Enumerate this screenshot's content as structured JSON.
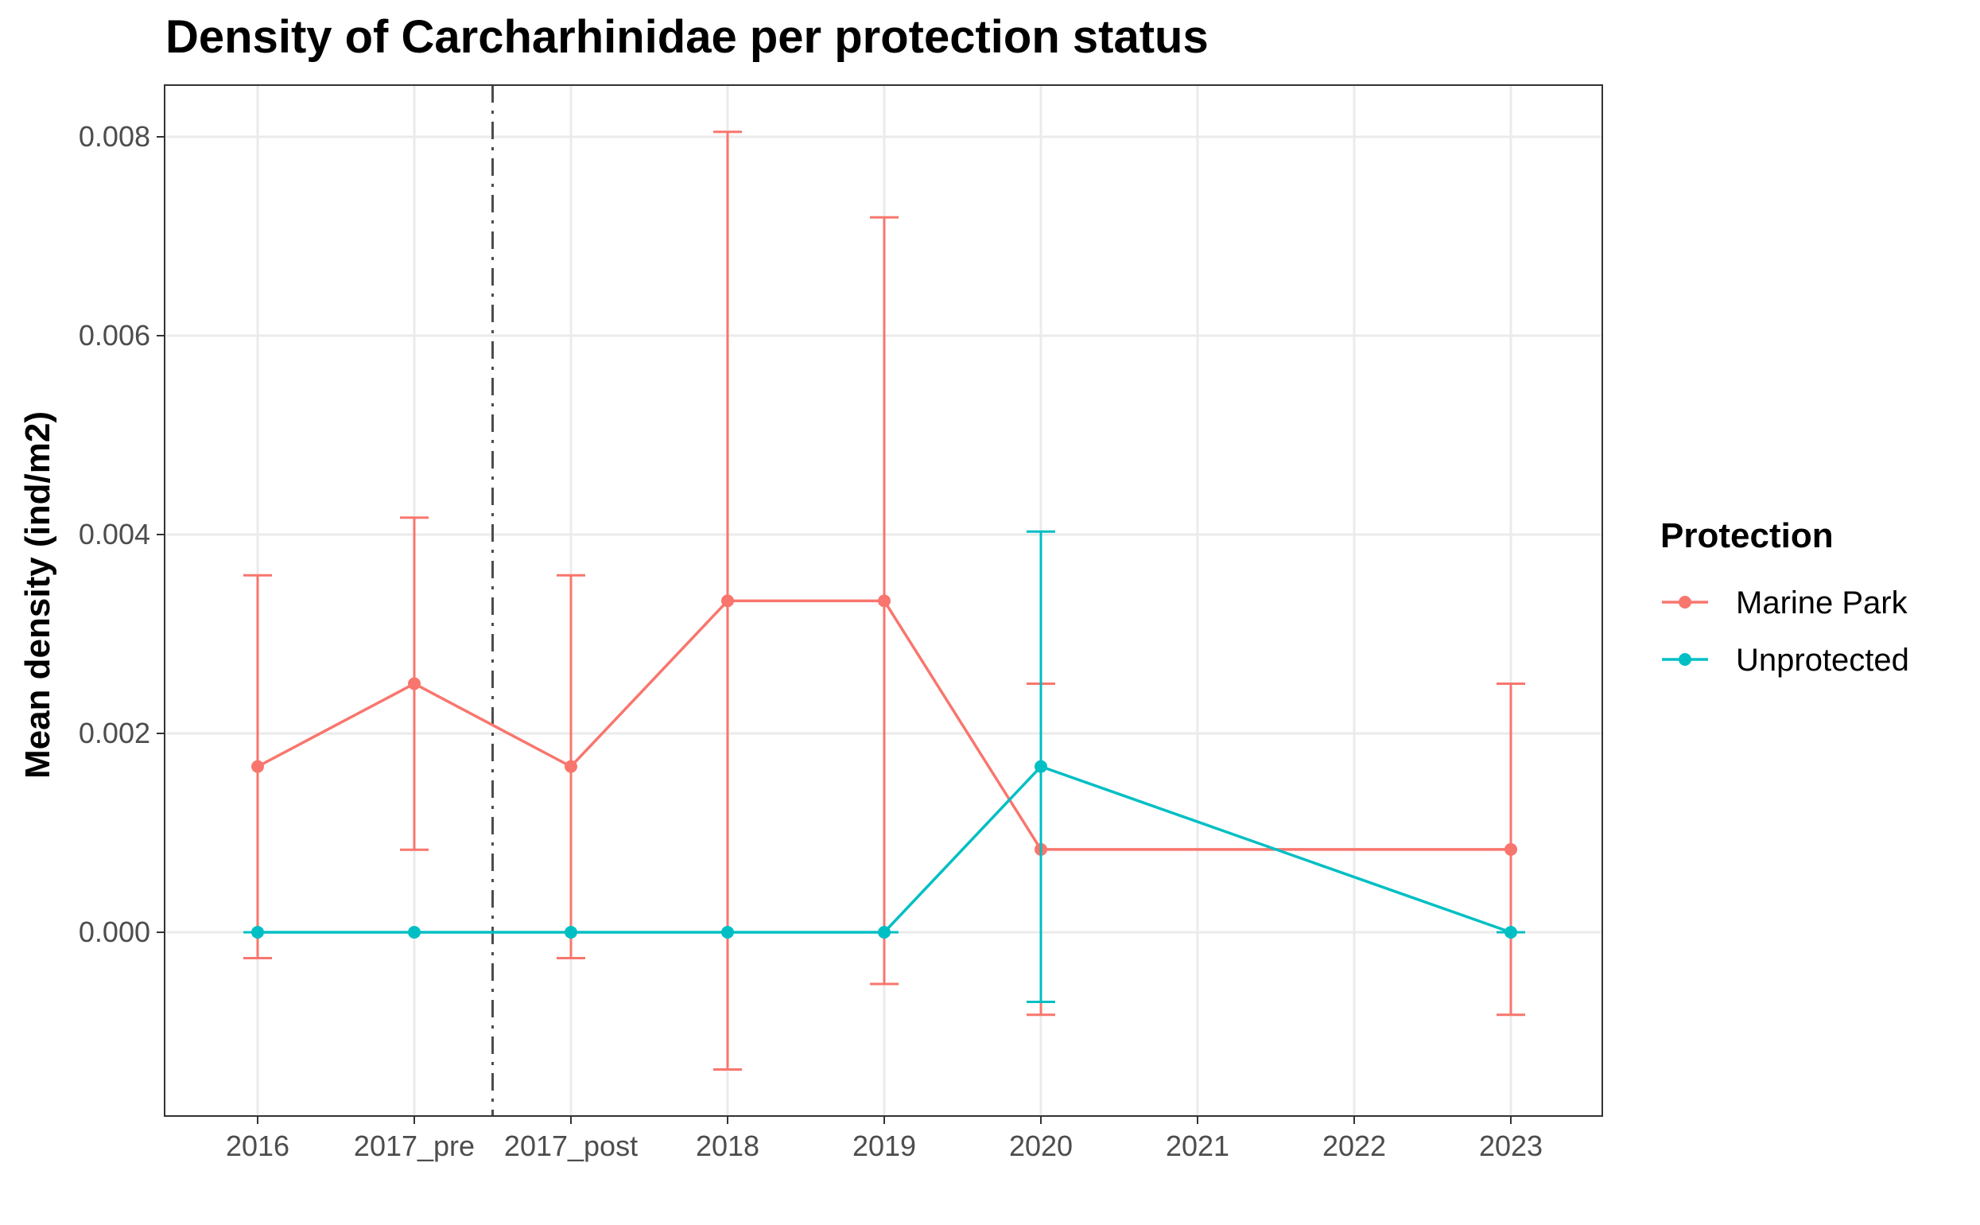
{
  "chart_data": {
    "type": "line",
    "title": "Density of Carcharhinidae per protection status",
    "xlabel": "",
    "ylabel": "Mean density (ind/m2)",
    "categories": [
      "2016",
      "2017_pre",
      "2017_post",
      "2018",
      "2019",
      "2020",
      "2021",
      "2022",
      "2023"
    ],
    "x_tick_labels": [
      "2016",
      "2017_pre",
      "2017_post",
      "2018",
      "2019",
      "2020",
      "2021",
      "2022",
      "2023"
    ],
    "y_ticks": [
      0.0,
      0.002,
      0.004,
      0.006,
      0.008
    ],
    "y_tick_labels": [
      "0.000",
      "0.002",
      "0.004",
      "0.006",
      "0.008"
    ],
    "ylim": [
      -0.00178,
      0.00853
    ],
    "grid": true,
    "legend": {
      "title": "Protection",
      "position": "right"
    },
    "reference_line": {
      "style": "dashdot",
      "between": [
        "2017_pre",
        "2017_post"
      ]
    },
    "series": [
      {
        "name": "Marine Park",
        "color": "#F8766D",
        "points": [
          {
            "x": "2016",
            "y": 0.001667,
            "ymin": -0.00026,
            "ymax": 0.00359
          },
          {
            "x": "2017_pre",
            "y": 0.0025,
            "ymin": 0.00083,
            "ymax": 0.00417
          },
          {
            "x": "2017_post",
            "y": 0.001667,
            "ymin": -0.00026,
            "ymax": 0.00359
          },
          {
            "x": "2018",
            "y": 0.003333,
            "ymin": -0.00138,
            "ymax": 0.00805
          },
          {
            "x": "2019",
            "y": 0.003333,
            "ymin": -0.00052,
            "ymax": 0.00719
          },
          {
            "x": "2020",
            "y": 0.000833,
            "ymin": -0.00083,
            "ymax": 0.0025
          },
          {
            "x": "2023",
            "y": 0.000833,
            "ymin": -0.00083,
            "ymax": 0.0025
          }
        ]
      },
      {
        "name": "Unprotected",
        "color": "#00BFC4",
        "points": [
          {
            "x": "2016",
            "y": 0.0,
            "ymin": 0.0,
            "ymax": 0.0
          },
          {
            "x": "2017_pre",
            "y": 0.0,
            "ymin": 0.0,
            "ymax": 0.0
          },
          {
            "x": "2017_post",
            "y": 0.0,
            "ymin": 0.0,
            "ymax": 0.0
          },
          {
            "x": "2018",
            "y": 0.0,
            "ymin": 0.0,
            "ymax": 0.0
          },
          {
            "x": "2019",
            "y": 0.0,
            "ymin": 0.0,
            "ymax": 0.0
          },
          {
            "x": "2020",
            "y": 0.001667,
            "ymin": -0.0007,
            "ymax": 0.00403
          },
          {
            "x": "2023",
            "y": 0.0,
            "ymin": 0.0,
            "ymax": 0.0
          }
        ]
      }
    ]
  }
}
